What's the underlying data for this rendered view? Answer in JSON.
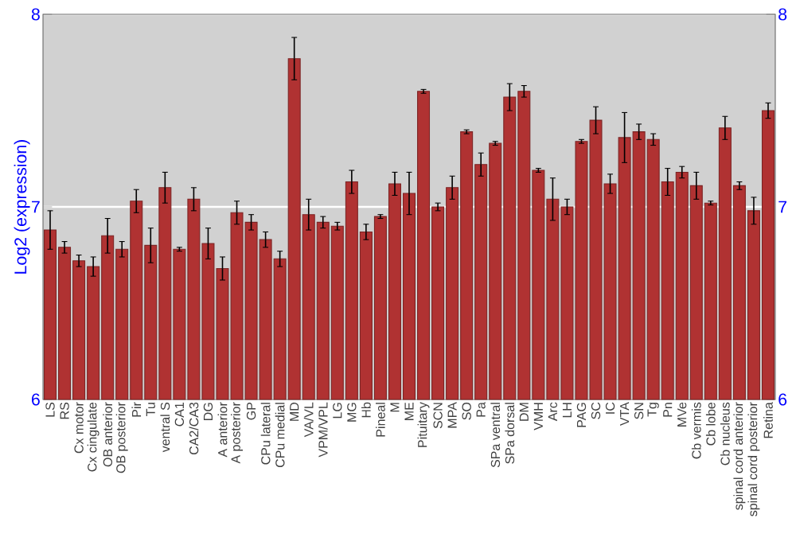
{
  "chart_data": {
    "type": "bar",
    "ylabel": "Log2 (expression)",
    "categories": [
      "LS",
      "RS",
      "Cx motor",
      "Cx cingulate",
      "OB anterior",
      "OB posterior",
      "Pir",
      "Tu",
      "ventral S",
      "CA1",
      "CA2/CA3",
      "DG",
      "A anterior",
      "A posterior",
      "GP",
      "CPu lateral",
      "CPu medial",
      "MD",
      "VA/VL",
      "VPM/VPL",
      "LG",
      "MG",
      "Hb",
      "Pineal",
      "M",
      "ME",
      "Pituitary",
      "SCN",
      "MPA",
      "SO",
      "Pa",
      "SPa ventral",
      "SPa dorsal",
      "DM",
      "VMH",
      "Arc",
      "LH",
      "PAG",
      "SC",
      "IC",
      "VTA",
      "SN",
      "Tg",
      "Pn",
      "MVe",
      "Cb vermis",
      "Cb lobe",
      "Cb nucleus",
      "spinal cord anterior",
      "spinal cord posterior",
      "Retina"
    ],
    "values": [
      6.88,
      6.79,
      6.72,
      6.69,
      6.85,
      6.78,
      7.03,
      6.8,
      7.1,
      6.78,
      7.04,
      6.81,
      6.68,
      6.97,
      6.92,
      6.83,
      6.73,
      7.77,
      6.96,
      6.92,
      6.9,
      7.13,
      6.87,
      6.95,
      7.12,
      7.07,
      7.6,
      7.0,
      7.1,
      7.39,
      7.22,
      7.33,
      7.57,
      7.6,
      7.19,
      7.04,
      7.0,
      7.34,
      7.45,
      7.12,
      7.36,
      7.39,
      7.35,
      7.13,
      7.18,
      7.11,
      7.02,
      7.41,
      7.11,
      6.98,
      7.5
    ],
    "errors": [
      0.1,
      0.03,
      0.03,
      0.05,
      0.09,
      0.04,
      0.06,
      0.09,
      0.08,
      0.01,
      0.06,
      0.08,
      0.06,
      0.06,
      0.04,
      0.04,
      0.04,
      0.11,
      0.08,
      0.03,
      0.02,
      0.06,
      0.04,
      0.01,
      0.06,
      0.11,
      0.01,
      0.02,
      0.06,
      0.01,
      0.06,
      0.01,
      0.07,
      0.03,
      0.01,
      0.11,
      0.04,
      0.01,
      0.07,
      0.05,
      0.13,
      0.04,
      0.03,
      0.07,
      0.03,
      0.07,
      0.01,
      0.06,
      0.02,
      0.07,
      0.04
    ],
    "color": "#b03232",
    "ylim": [
      6,
      8
    ],
    "yticks": [
      6,
      7,
      8
    ],
    "y2lim": [
      6,
      8
    ],
    "y2ticks": [
      6,
      7,
      8
    ],
    "grid": "y"
  }
}
